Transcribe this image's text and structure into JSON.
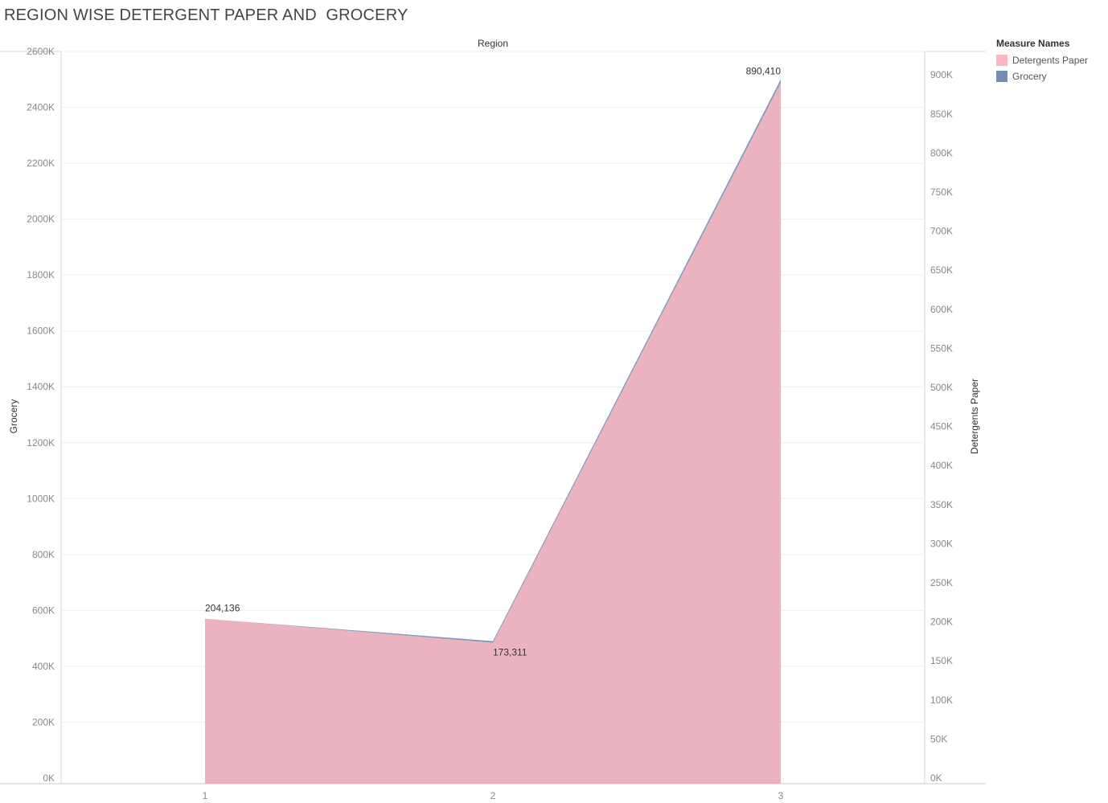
{
  "title": "REGION WISE DETERGENT PAPER AND  GROCERY",
  "legend": {
    "title": "Measure Names",
    "items": [
      {
        "label": "Detergents Paper",
        "color": "#ffb6c1"
      },
      {
        "label": "Grocery",
        "color": "#4e79a7"
      }
    ]
  },
  "chart_data": {
    "type": "area",
    "xlabel_top": "Region",
    "categories": [
      "1",
      "2",
      "3"
    ],
    "series": [
      {
        "name": "Grocery",
        "axis": "left",
        "values": [
          570000,
          490000,
          2500000
        ],
        "color": "#4e79a7"
      },
      {
        "name": "Detergents Paper",
        "axis": "right",
        "values": [
          204136,
          173311,
          890410
        ],
        "color": "#ffb6c1"
      }
    ],
    "data_labels": [
      "204,136",
      "173,311",
      "890,410"
    ],
    "y_left": {
      "label": "Grocery",
      "ylim": [
        0,
        2600000
      ],
      "ticks": [
        "0K",
        "200K",
        "400K",
        "600K",
        "800K",
        "1000K",
        "1200K",
        "1400K",
        "1600K",
        "1800K",
        "2000K",
        "2200K",
        "2400K",
        "2600K"
      ]
    },
    "y_right": {
      "label": "Detergents Paper",
      "ylim": [
        0,
        930000
      ],
      "ticks": [
        "0K",
        "50K",
        "100K",
        "150K",
        "200K",
        "250K",
        "300K",
        "350K",
        "400K",
        "450K",
        "500K",
        "550K",
        "600K",
        "650K",
        "700K",
        "750K",
        "800K",
        "850K",
        "900K"
      ]
    },
    "grid": true
  }
}
